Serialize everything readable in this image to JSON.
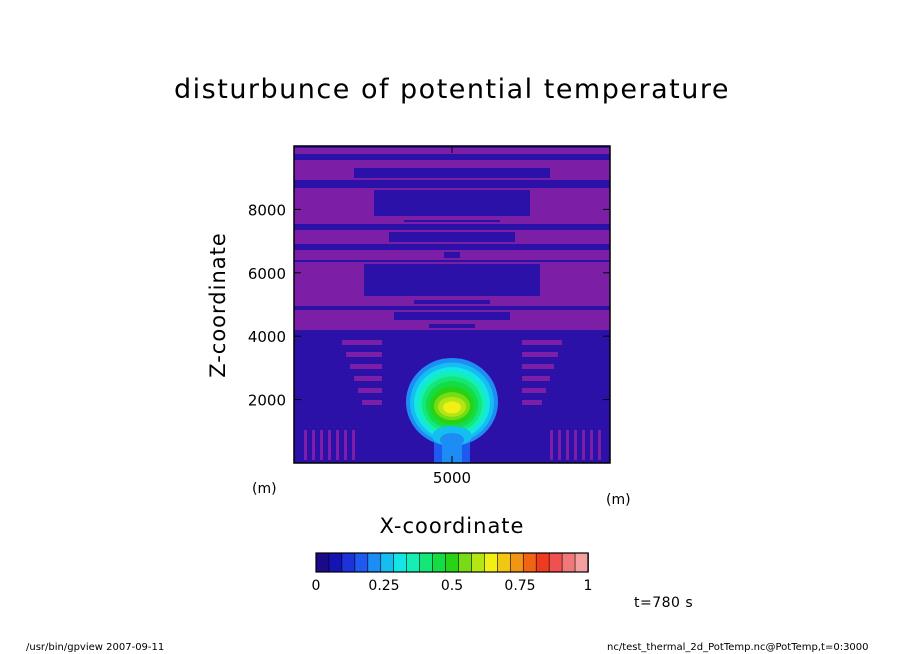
{
  "chart_data": {
    "type": "heatmap",
    "title": "disturbunce of potential temperature",
    "xlabel": "X-coordinate",
    "ylabel": "Z-coordinate",
    "x_unit": "(m)",
    "y_unit": "(m)",
    "x_ticks": [
      5000
    ],
    "y_ticks": [
      2000,
      4000,
      6000,
      8000
    ],
    "xlim": [
      0,
      10000
    ],
    "ylim": [
      0,
      10000
    ],
    "colorbar": {
      "tick_labels": [
        "0",
        "0.25",
        "0.5",
        "0.75",
        "1"
      ],
      "tick_values": [
        0,
        0.25,
        0.5,
        0.75,
        1
      ],
      "range": [
        0,
        1
      ],
      "colors": [
        "#1a0a8a",
        "#1414b4",
        "#1e32dc",
        "#1e5af0",
        "#1e8cf5",
        "#14bef0",
        "#14e6e6",
        "#14f0b4",
        "#14e678",
        "#14dc46",
        "#28d214",
        "#78dc14",
        "#b4e614",
        "#f0f014",
        "#f0c814",
        "#f09614",
        "#f06414",
        "#f03c1e",
        "#f05050",
        "#f07878",
        "#f5a0a0"
      ]
    },
    "thermal_center": {
      "x": 5000,
      "z": 1800,
      "peak": 0.8
    },
    "background_bands": {
      "colors": [
        "#2c11a8",
        "#7d1fa6"
      ]
    }
  },
  "annotations": {
    "time": "t=780 s"
  },
  "footer": {
    "left": "/usr/bin/gpview   2007-09-11",
    "right": "nc/test_thermal_2d_PotTemp.nc@PotTemp,t=0:3000"
  }
}
